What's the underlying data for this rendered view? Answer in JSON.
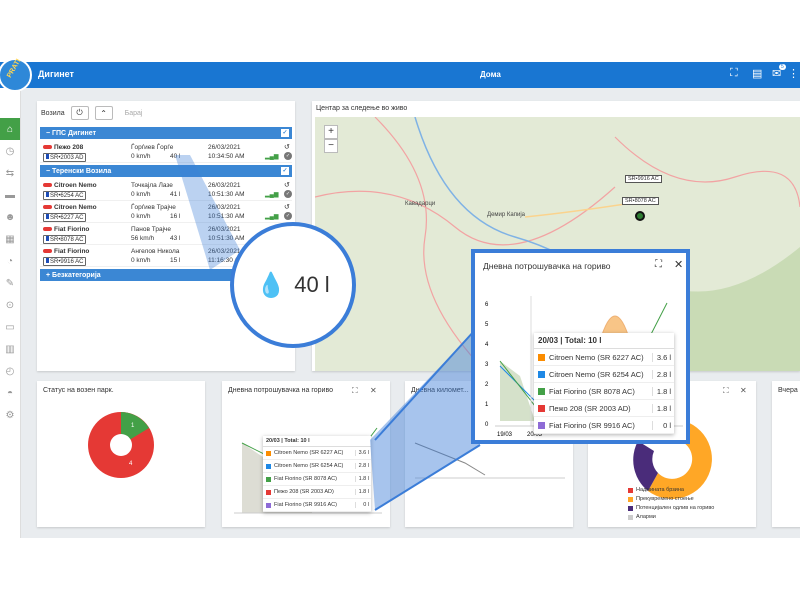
{
  "app": {
    "title": "Дигинет",
    "home": "Дома",
    "badge_msgs": "5",
    "logo_text": "PRATI"
  },
  "colors": {
    "topbar": "#1976d2",
    "accent_green": "#43a047",
    "group": "#3b87d4",
    "pie_red": "#e53935",
    "pie_green": "#43a047"
  },
  "vehicles_panel": {
    "label": "Возила",
    "search_placeholder": "Барај",
    "groups": [
      {
        "name": "− ГПС Дигинет",
        "vehicles": [
          {
            "name": "Пежо 208",
            "plate": "SR•2003 AD",
            "driver": "Ѓорѓиев Ѓорѓе",
            "speed": "0 km/h",
            "fuel": "40 l",
            "date": "26/03/2021",
            "time": "10:34:50 AM"
          }
        ]
      },
      {
        "name": "− Теренски Возила",
        "vehicles": [
          {
            "name": "Citroen Nemo",
            "plate": "SR•6254 AC",
            "driver": "Точкајла Лазе",
            "speed": "0 km/h",
            "fuel": "41 l",
            "date": "26/03/2021",
            "time": "10:51:30 AM"
          },
          {
            "name": "Citroen Nemo",
            "plate": "SR•6227 AC",
            "driver": "Ѓорѓиев Трајче",
            "speed": "0 km/h",
            "fuel": "16 l",
            "date": "26/03/2021",
            "time": "10:51:30 AM"
          },
          {
            "name": "Fiat Fiorino",
            "plate": "SR•8078 AC",
            "driver": "Панов Трајче",
            "speed": "56 km/h",
            "fuel": "43 l",
            "date": "26/03/2021",
            "time": "10:51:30 AM"
          },
          {
            "name": "Fiat Fiorino",
            "plate": "SR•9916 AC",
            "driver": "Ангелов Никола",
            "speed": "0 km/h",
            "fuel": "15 l",
            "date": "26/03/2021",
            "time": "11:16:30 AM"
          }
        ]
      },
      {
        "name": "+ Безкатегорија",
        "vehicles": []
      }
    ]
  },
  "map": {
    "title": "Центар за следење во живо",
    "zoom_in": "+",
    "zoom_out": "−",
    "cities": [
      "Кавадарци",
      "Демир Капија"
    ],
    "markers": [
      "SR•9916 AC",
      "SR•8078 AC"
    ]
  },
  "bottom": {
    "status_title": "Статус на возен парк.",
    "fuel_title": "Дневна потрошувачка на гориво",
    "km_title": "Дневна километ...",
    "last_title": "Вчера",
    "pie_labels": [
      "1",
      "4"
    ],
    "legend": [
      "Надмината брзина",
      "Прекувремено стоење",
      "Потенцијален одлив на гориво",
      "Аларми"
    ]
  },
  "zoom_fuel": "40 l",
  "popup": {
    "title": "Дневна потрошувачка на гориво",
    "header": "20/03 | Total: 10 l"
  },
  "tooltip_rows": [
    {
      "name": "Citroen Nemo (SR 6227 AC)",
      "value": "3.6 l",
      "color": "#fb8c00"
    },
    {
      "name": "Citroen Nemo (SR 6254 AC)",
      "value": "2.8 l",
      "color": "#1e88e5"
    },
    {
      "name": "Fiat Fiorino (SR 8078 AC)",
      "value": "1.8 l",
      "color": "#43a047"
    },
    {
      "name": "Пежо 208 (SR 2003 AD)",
      "value": "1.8 l",
      "color": "#e53935"
    },
    {
      "name": "Fiat Fiorino (SR 9916 AC)",
      "value": "0 l",
      "color": "#8e6bd6"
    }
  ],
  "chart_data": {
    "type": "line",
    "x": [
      "19/03",
      "20/03"
    ],
    "series": [],
    "yticks": [
      "0",
      "1",
      "2",
      "3",
      "4",
      "5",
      "6"
    ],
    "ylim": [
      0,
      6
    ]
  }
}
